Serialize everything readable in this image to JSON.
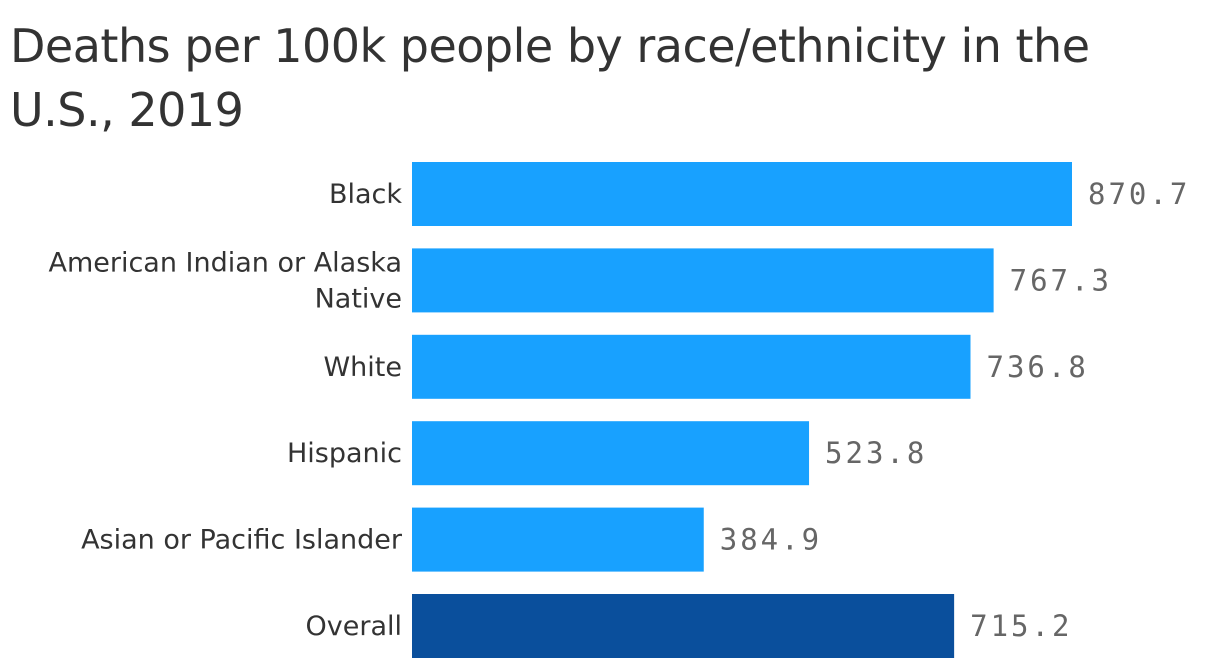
{
  "chart_data": {
    "type": "bar",
    "orientation": "horizontal",
    "title": "Deaths per 100k people by race/ethnicity in the U.S., 2019",
    "categories": [
      "Black",
      "American Indian or Alaska Native",
      "White",
      "Hispanic",
      "Asian or Pacific Islander",
      "Overall"
    ],
    "values": [
      870.7,
      767.3,
      736.8,
      523.8,
      384.9,
      715.2
    ],
    "value_labels": [
      "870.7",
      "767.3",
      "736.8",
      "523.8",
      "384.9",
      "715.2"
    ],
    "xlim": [
      0,
      870.7
    ],
    "grid": false,
    "legend": "none",
    "colors": {
      "default": "#18a1ff",
      "highlight": "#0a4f9c"
    },
    "highlight_category": "Overall"
  }
}
